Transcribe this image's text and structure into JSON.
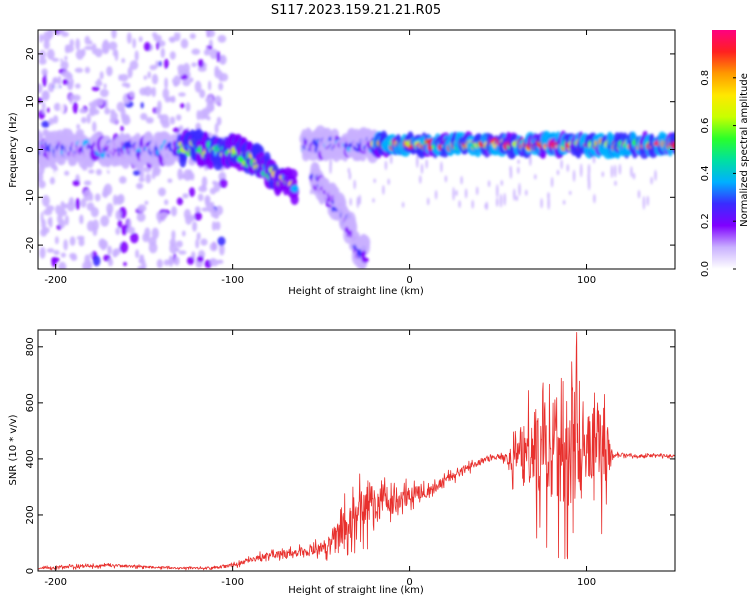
{
  "title": "S117.2023.159.21.21.R05",
  "colors": {
    "line": "#e8302d",
    "background": "#ffffff",
    "axis": "#000000"
  },
  "chart_data": [
    {
      "type": "heatmap",
      "xlabel": "Height of straight line (km)",
      "ylabel": "Frequency (Hz)",
      "xlim": [
        -210,
        150
      ],
      "ylim": [
        -25,
        25
      ],
      "xticks": [
        -200,
        -100,
        0,
        100
      ],
      "xtick_labels": [
        "-200",
        "-100",
        "0",
        "100"
      ],
      "yticks": [
        -20,
        -10,
        0,
        10,
        20
      ],
      "ytick_labels": [
        "-20",
        "-10",
        "0",
        "10",
        "20"
      ],
      "colorbar": {
        "label": "Normalized spectral amplitude",
        "range": [
          0,
          1
        ],
        "ticks": [
          0.0,
          0.2,
          0.4,
          0.6,
          0.8
        ],
        "tick_labels": [
          "0.0",
          "0.2",
          "0.4",
          "0.6",
          "0.8"
        ],
        "colormap": [
          "#ffffff",
          "#c9b0ff",
          "#7f00ff",
          "#3a2bff",
          "#00b0ff",
          "#00e0a0",
          "#2aff2a",
          "#c8ff00",
          "#ffe800",
          "#ff9900",
          "#ff2020",
          "#ff0080"
        ]
      },
      "features": [
        {
          "name": "",
          "x": [
            -210,
            -130
          ],
          "y_center": 0,
          "peak": 0.35
        },
        {
          "name": "",
          "x": [
            -130,
            -65
          ],
          "y_path": [
            [
              -130,
              0.5
            ],
            [
              -100,
              -0.5
            ],
            [
              -85,
              -3
            ],
            [
              -70,
              -7
            ],
            [
              -65,
              -8
            ]
          ],
          "peak": 0.75
        },
        {
          "name": "",
          "x": [
            -60,
            -20
          ],
          "y_center": 1,
          "peak": 0.35
        },
        {
          "name": "",
          "x": [
            -55,
            -25
          ],
          "y_path": [
            [
              -55,
              -5
            ],
            [
              -45,
              -10
            ],
            [
              -35,
              -15
            ],
            [
              -30,
              -20
            ],
            [
              -28,
              -22
            ]
          ],
          "peak": 0.3
        },
        {
          "name": "",
          "x": [
            -20,
            150
          ],
          "y_center": 1,
          "peak": 1.0
        }
      ]
    },
    {
      "type": "line",
      "xlabel": "Height of straight line (km)",
      "ylabel": "SNR (10 * v/v)",
      "xlim": [
        -210,
        150
      ],
      "ylim": [
        0,
        860
      ],
      "xticks": [
        -200,
        -100,
        0,
        100
      ],
      "xtick_labels": [
        "-200",
        "-100",
        "0",
        "100"
      ],
      "yticks": [
        0,
        200,
        400,
        600,
        800
      ],
      "ytick_labels": [
        "0",
        "200",
        "400",
        "600",
        "800"
      ],
      "series": [
        {
          "name": "",
          "color": "#e8302d",
          "x": [
            -210,
            -190,
            -170,
            -150,
            -130,
            -110,
            -100,
            -90,
            -80,
            -70,
            -60,
            -50,
            -45,
            -40,
            -35,
            -30,
            -25,
            -20,
            -15,
            -10,
            -5,
            0,
            5,
            10,
            15,
            20,
            25,
            30,
            40,
            50,
            55,
            60,
            65,
            70,
            75,
            80,
            85,
            90,
            95,
            100,
            105,
            110,
            115,
            120,
            130,
            140,
            150
          ],
          "y": [
            10,
            15,
            20,
            15,
            10,
            12,
            20,
            40,
            55,
            60,
            70,
            80,
            95,
            140,
            170,
            210,
            225,
            240,
            260,
            250,
            260,
            270,
            285,
            280,
            300,
            320,
            340,
            360,
            390,
            410,
            405,
            420,
            400,
            430,
            420,
            400,
            430,
            440,
            450,
            420,
            460,
            430,
            410,
            415,
            410,
            412,
            410
          ],
          "noise": [
            4,
            6,
            6,
            5,
            4,
            5,
            8,
            12,
            14,
            16,
            20,
            26,
            40,
            70,
            80,
            90,
            100,
            110,
            80,
            60,
            50,
            40,
            30,
            25,
            25,
            22,
            20,
            18,
            12,
            10,
            18,
            130,
            110,
            190,
            210,
            260,
            250,
            280,
            300,
            200,
            240,
            180,
            8,
            8,
            6,
            6,
            6
          ]
        }
      ]
    }
  ]
}
